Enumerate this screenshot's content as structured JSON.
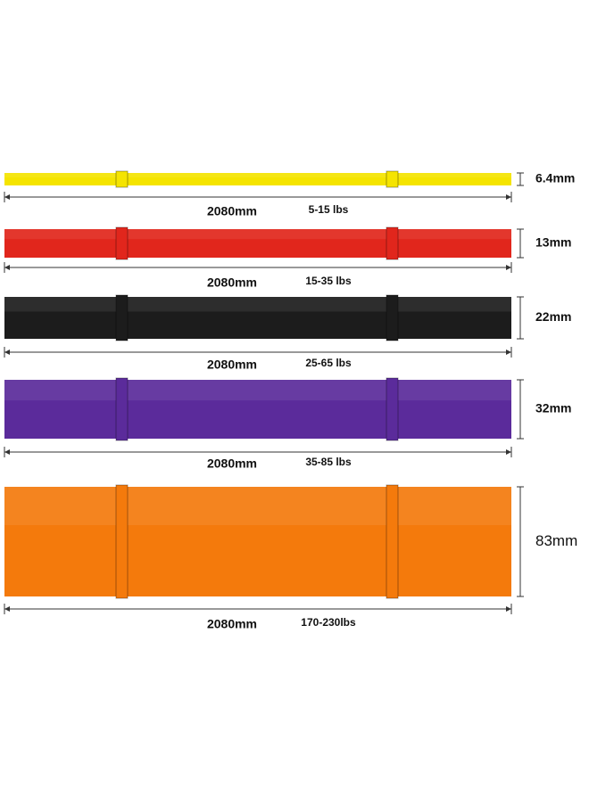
{
  "bands": [
    {
      "thickness": "6.4mm",
      "length": "2080mm",
      "resistance": "5-15 lbs",
      "color": "#f5e400"
    },
    {
      "thickness": "13mm",
      "length": "2080mm",
      "resistance": "15-35 lbs",
      "color": "#e1261c"
    },
    {
      "thickness": "22mm",
      "length": "2080mm",
      "resistance": "25-65 lbs",
      "color": "#1c1c1c"
    },
    {
      "thickness": "32mm",
      "length": "2080mm",
      "resistance": "35-85 lbs",
      "color": "#5b2b9b"
    },
    {
      "thickness": "83mm",
      "length": "2080mm",
      "resistance": "170-230lbs",
      "color": "#f47a0c"
    }
  ]
}
